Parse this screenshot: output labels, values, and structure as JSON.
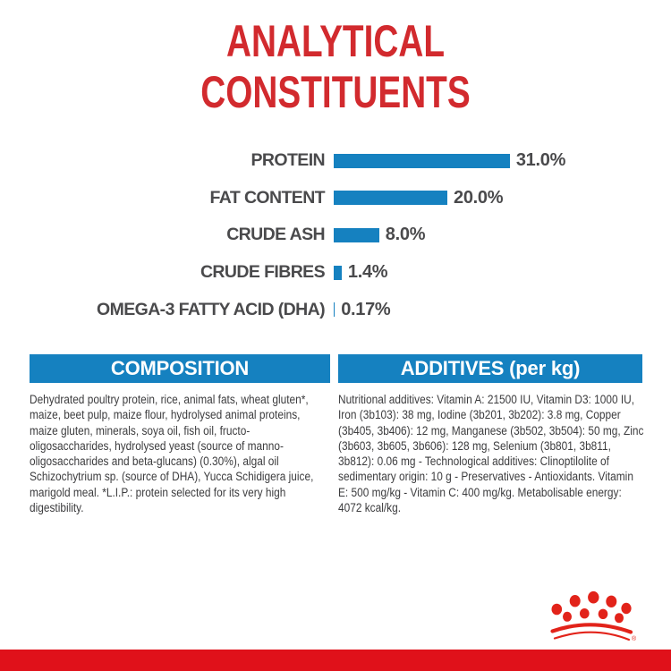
{
  "title": {
    "line1": "ANALYTICAL",
    "line2": "CONSTITUENTS"
  },
  "chart_data": {
    "type": "bar",
    "orientation": "horizontal",
    "title": "ANALYTICAL CONSTITUENTS",
    "categories": [
      "PROTEIN",
      "FAT CONTENT",
      "CRUDE ASH",
      "CRUDE FIBRES",
      "OMEGA-3 FATTY ACID (DHA)"
    ],
    "values": [
      31.0,
      20.0,
      8.0,
      1.4,
      0.17
    ],
    "value_labels": [
      "31.0%",
      "20.0%",
      "8.0%",
      "1.4%",
      "0.17%"
    ],
    "unit": "%",
    "xlim": [
      0,
      35
    ],
    "grid": false,
    "bar_color": "#1581c0"
  },
  "sections": {
    "composition": {
      "header": "COMPOSITION",
      "body": "Dehydrated poultry protein, rice, animal fats, wheat gluten*, maize, beet pulp, maize flour, hydrolysed animal proteins, maize gluten, minerals, soya oil, fish oil, fructo-oligosaccharides, hydrolysed yeast (source of manno-oligosaccharides and beta-glucans) (0.30%), algal oil Schizochytrium sp. (source of DHA), Yucca Schidigera juice, marigold meal. *L.I.P.: protein selected for its very high digestibility."
    },
    "additives": {
      "header": "ADDITIVES (per kg)",
      "body": "Nutritional additives: Vitamin A: 21500 IU, Vitamin D3: 1000 IU, Iron (3b103): 38 mg, Iodine (3b201, 3b202): 3.8 mg, Copper (3b405, 3b406): 12 mg, Manganese (3b502, 3b504): 50 mg, Zinc (3b603, 3b605, 3b606): 128 mg, Selenium (3b801, 3b811, 3b812): 0.06 mg - Technological additives: Clinoptilolite of sedimentary origin: 10 g - Preservatives - Antioxidants. Vitamin E: 500 mg/kg - Vitamin C: 400 mg/kg. Metabolisable energy: 4072 kcal/kg."
    }
  },
  "branding": {
    "logo": "royal-canin-crown",
    "registered_mark": "®"
  },
  "colors": {
    "title_red": "#d22a2e",
    "brand_red": "#e2231a",
    "strip_red": "#e0111a",
    "chart_blue": "#1581c0",
    "label_gray": "#4a4a4c",
    "body_gray": "#3c3c3e"
  }
}
